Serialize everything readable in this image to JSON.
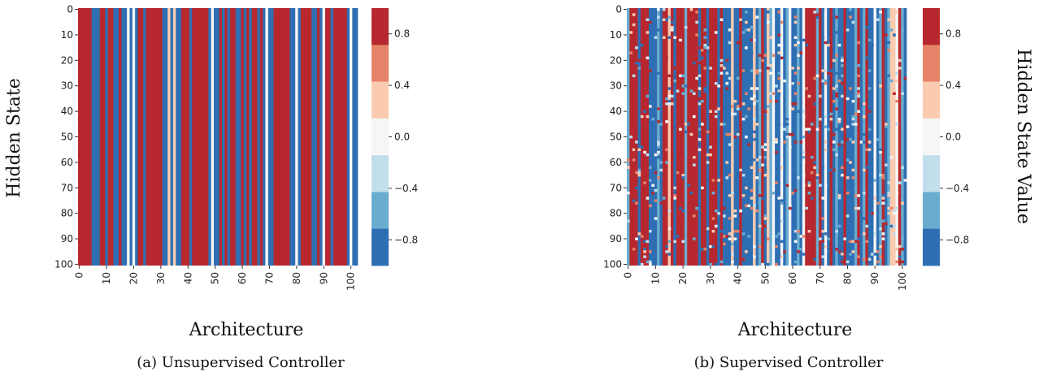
{
  "chart_data": [
    {
      "type": "heatmap",
      "caption": "(a) Unsupervised Controller",
      "xlabel": "Architecture",
      "ylabel": "Hidden State",
      "xticks": [
        "0",
        "10",
        "20",
        "30",
        "40",
        "50",
        "60",
        "70",
        "80",
        "90",
        "100"
      ],
      "yticks": [
        "0",
        "10",
        "20",
        "30",
        "40",
        "50",
        "60",
        "70",
        "80",
        "90",
        "100"
      ],
      "xlim": [
        0,
        100
      ],
      "ylim": [
        0,
        100
      ],
      "value_range": [
        -1,
        1
      ],
      "columns": [
        1,
        1,
        1,
        1,
        1,
        -1,
        -1,
        -1,
        1,
        1,
        -1,
        1,
        1,
        -1,
        -1,
        1,
        -1,
        -1,
        0,
        -1,
        0,
        -1,
        1,
        1,
        -1,
        1,
        1,
        1,
        1,
        1,
        1,
        -1,
        -1,
        0.4,
        -1,
        0.4,
        -1,
        -1,
        1,
        1,
        1,
        -1,
        1,
        1,
        1,
        1,
        1,
        1,
        -1,
        0,
        -1,
        -1,
        1,
        -1,
        1,
        -1,
        1,
        1,
        -1,
        -1,
        1,
        -1,
        1,
        -1,
        1,
        1,
        -1,
        1,
        -1,
        0,
        -1,
        -1,
        1,
        1,
        1,
        1,
        1,
        1,
        -1,
        -1,
        0,
        -1,
        1,
        1,
        1,
        1,
        -1,
        -1,
        1,
        -1,
        0,
        1,
        1,
        -1,
        1,
        1,
        1,
        1,
        1,
        -1,
        0,
        -1,
        -1
      ]
    },
    {
      "type": "heatmap",
      "caption": "(b) Supervised Controller",
      "xlabel": "Architecture",
      "ylabel": "",
      "xticks": [
        "0",
        "10",
        "20",
        "30",
        "40",
        "50",
        "60",
        "70",
        "80",
        "90",
        "100"
      ],
      "yticks": [
        "0",
        "10",
        "20",
        "30",
        "40",
        "50",
        "60",
        "70",
        "80",
        "90",
        "100"
      ],
      "xlim": [
        0,
        100
      ],
      "ylim": [
        0,
        100
      ],
      "value_range": [
        -1,
        1
      ],
      "columns": [
        -0.6,
        1,
        1,
        1,
        -1,
        1,
        1,
        1,
        -1,
        -1,
        -1,
        -0.6,
        -1,
        1,
        1,
        0.4,
        1,
        -1,
        1,
        1,
        1,
        -0.6,
        1,
        1,
        1,
        1,
        -1,
        1,
        1,
        -1,
        1,
        1,
        1,
        -1,
        1,
        -1,
        -1,
        -1,
        0.4,
        -1,
        -1,
        1,
        -1,
        -1,
        -1,
        -1,
        0.4,
        -1,
        -0.6,
        1,
        -1,
        0.4,
        -0.6,
        0.0,
        -1,
        -1,
        0,
        -1,
        -0.6,
        0.0,
        -1,
        -1,
        -0.6,
        -1,
        0.0,
        1,
        1,
        1,
        1,
        -0.6,
        1,
        -1,
        0.0,
        -1,
        1,
        -1,
        -0.6,
        -1,
        -1,
        1,
        -1,
        -1,
        -1,
        -0.6,
        1,
        -1,
        -0.6,
        1,
        -1,
        -1,
        0.0,
        -1,
        -0.6,
        1,
        -1,
        -0.6,
        0.4,
        0.4,
        0.0,
        1,
        -0.6,
        -1
      ],
      "noise": 0.07
    }
  ],
  "colorbar": {
    "label": "Hidden State Value",
    "ticks": [
      {
        "value": 0.8,
        "label": "0.8"
      },
      {
        "value": 0.4,
        "label": "0.4"
      },
      {
        "value": 0.0,
        "label": "0.0"
      },
      {
        "value": -0.4,
        "label": "−0.4"
      },
      {
        "value": -0.8,
        "label": "−0.8"
      }
    ],
    "bins": [
      {
        "from": 0.714,
        "to": 1.0,
        "color": "#b7282e"
      },
      {
        "from": 0.429,
        "to": 0.714,
        "color": "#e58368"
      },
      {
        "from": 0.143,
        "to": 0.429,
        "color": "#fbcbb0"
      },
      {
        "from": -0.143,
        "to": 0.143,
        "color": "#f6f6f6"
      },
      {
        "from": -0.429,
        "to": -0.143,
        "color": "#c2ddec"
      },
      {
        "from": -0.714,
        "to": -0.429,
        "color": "#6aacd0"
      },
      {
        "from": -1.0,
        "to": -0.714,
        "color": "#2e6fb3"
      }
    ]
  }
}
